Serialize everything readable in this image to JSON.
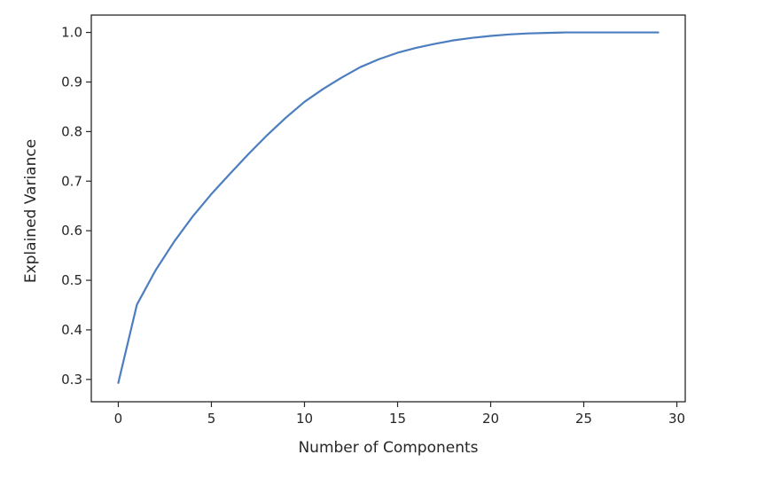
{
  "chart_data": {
    "type": "line",
    "title": "",
    "xlabel": "Number of Components",
    "ylabel": "Explained Variance",
    "xlim": [
      -1.45,
      30.45
    ],
    "ylim": [
      0.255,
      1.035
    ],
    "x_ticks": [
      0,
      5,
      10,
      15,
      20,
      25,
      30
    ],
    "y_ticks": [
      0.3,
      0.4,
      0.5,
      0.6,
      0.7,
      0.8,
      0.9,
      1.0
    ],
    "x_tick_labels": [
      "0",
      "5",
      "10",
      "15",
      "20",
      "25",
      "30"
    ],
    "y_tick_labels": [
      "0.3",
      "0.4",
      "0.5",
      "0.6",
      "0.7",
      "0.8",
      "0.9",
      "1.0"
    ],
    "grid": false,
    "legend": "none",
    "line_color": "#4c7ebf",
    "series": [
      {
        "x": [
          0,
          1,
          2,
          3,
          4,
          5,
          6,
          7,
          8,
          9,
          10,
          11,
          12,
          13,
          14,
          15,
          16,
          17,
          18,
          19,
          20,
          21,
          22,
          23,
          24,
          25,
          26,
          27,
          28,
          29
        ],
        "values": [
          0.293,
          0.451,
          0.52,
          0.578,
          0.629,
          0.674,
          0.715,
          0.755,
          0.793,
          0.828,
          0.86,
          0.886,
          0.909,
          0.93,
          0.946,
          0.959,
          0.969,
          0.977,
          0.984,
          0.989,
          0.993,
          0.996,
          0.998,
          0.999,
          1.0,
          1.0,
          1.0,
          1.0,
          1.0,
          1.0
        ]
      }
    ]
  }
}
